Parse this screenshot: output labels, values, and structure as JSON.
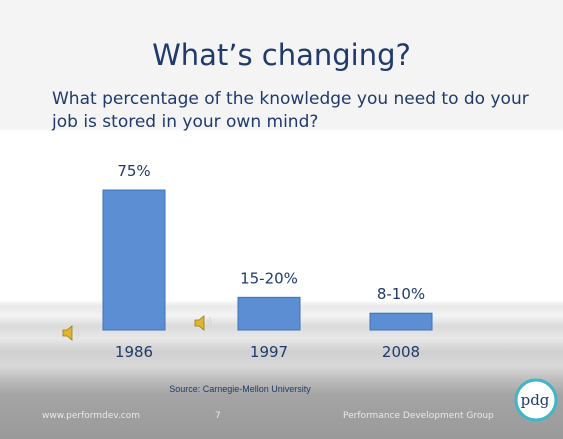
{
  "slide": {
    "title": "What’s changing?",
    "question": "What percentage of the knowledge you need to do your job is stored in your own mind?",
    "source": "Source: Carnegie-Mellon University",
    "footer": {
      "website": "www.performdev.com",
      "page_number": "7",
      "organization": "Performance Development Group"
    },
    "logo_text": "pdg"
  },
  "icons": {
    "speaker": "speaker-sound-icon",
    "logo": "pdg-logo-icon"
  },
  "colors": {
    "bar": "#5b8ed3",
    "bar_border": "#3f72b8",
    "text": "#1f3a6b"
  },
  "chart_data": {
    "type": "bar",
    "categories": [
      "1986",
      "1997",
      "2008"
    ],
    "values": [
      75,
      17.5,
      9
    ],
    "data_labels": [
      "75%",
      "15-20%",
      "8-10%"
    ],
    "title": "",
    "xlabel": "",
    "ylabel": "",
    "ylim": [
      0,
      75
    ],
    "grid": false,
    "legend": "none"
  }
}
